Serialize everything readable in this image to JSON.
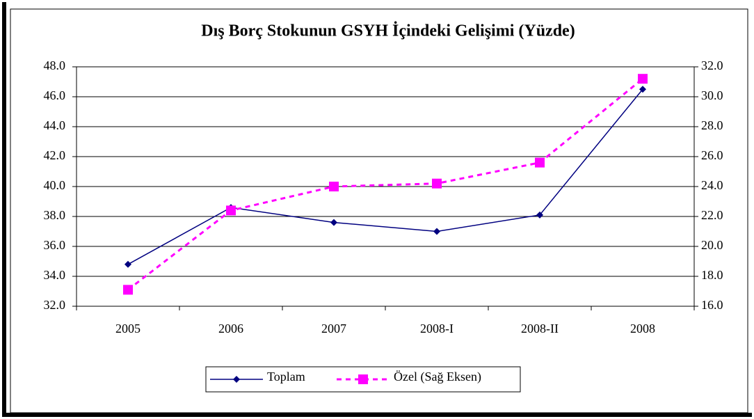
{
  "chart_data": {
    "type": "line",
    "title": "Dış Borç Stokunun GSYH İçindeki Gelişimi (Yüzde)",
    "categories": [
      "2005",
      "2006",
      "2007",
      "2008-I",
      "2008-II",
      "2008"
    ],
    "series": [
      {
        "name": "Toplam",
        "color": "#000080",
        "values": [
          34.8,
          38.6,
          37.6,
          37.0,
          38.1,
          46.5
        ]
      },
      {
        "name": "Özel (Sağ Eksen)",
        "color": "#ff00ff",
        "axis": "y2",
        "values": [
          17.1,
          22.4,
          24.0,
          24.2,
          25.6,
          31.2
        ]
      }
    ],
    "ylim": [
      32,
      48
    ],
    "yticks": [
      {
        "value": 32,
        "label": "32.0"
      },
      {
        "value": 34,
        "label": "34.0"
      },
      {
        "value": 36,
        "label": "36.0"
      },
      {
        "value": 38,
        "label": "38.0"
      },
      {
        "value": 40,
        "label": "40.0"
      },
      {
        "value": 42,
        "label": "42.0"
      },
      {
        "value": 44,
        "label": "44.0"
      },
      {
        "value": 46,
        "label": "46.0"
      },
      {
        "value": 48,
        "label": "48.0"
      }
    ],
    "y2lim": [
      16,
      32
    ],
    "y2ticks": [
      {
        "value": 16,
        "label": "16.0"
      },
      {
        "value": 18,
        "label": "18.0"
      },
      {
        "value": 20,
        "label": "20.0"
      },
      {
        "value": 22,
        "label": "22.0"
      },
      {
        "value": 24,
        "label": "24.0"
      },
      {
        "value": 26,
        "label": "26.0"
      },
      {
        "value": 28,
        "label": "28.0"
      },
      {
        "value": 30,
        "label": "30.0"
      },
      {
        "value": 32,
        "label": "32.0"
      }
    ],
    "grid": true,
    "legend": "bottom"
  }
}
